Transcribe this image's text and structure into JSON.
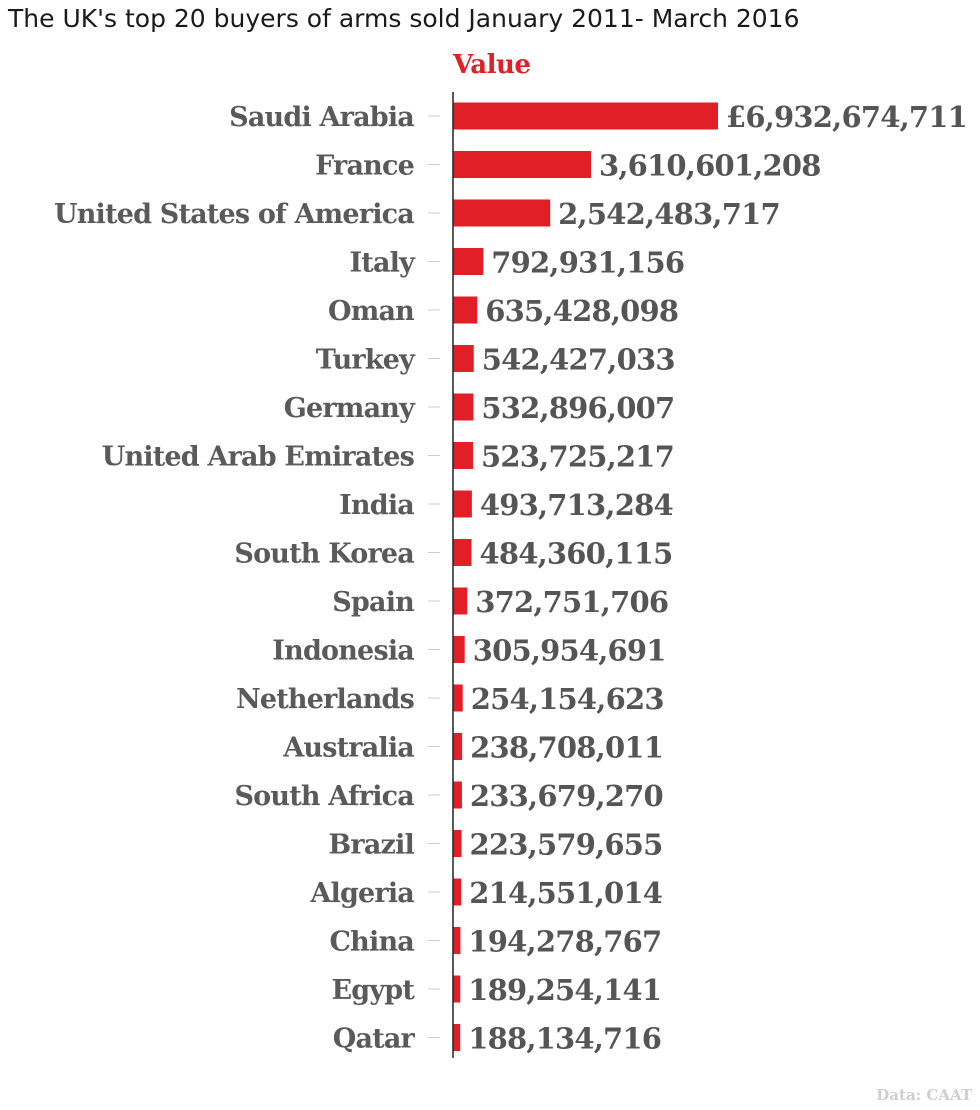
{
  "title": "The UK's top 20 buyers of arms sold January 2011- March 2016",
  "source": "Data: CAAT",
  "colors": {
    "bar": "#e01f26",
    "header": "#e01f26",
    "label": "#5a5a5a",
    "axis": "#222222",
    "tick": "#cccccc"
  },
  "chart_data": {
    "type": "bar",
    "orientation": "horizontal",
    "title": "The UK's top 20 buyers of arms sold January 2011- March 2016",
    "series": [
      {
        "name": "Value"
      }
    ],
    "categories": [
      "Saudi Arabia",
      "France",
      "United States of America",
      "Italy",
      "Oman",
      "Turkey",
      "Germany",
      "United Arab Emirates",
      "India",
      "South Korea",
      "Spain",
      "Indonesia",
      "Netherlands",
      "Australia",
      "South Africa",
      "Brazil",
      "Algeria",
      "China",
      "Egypt",
      "Qatar"
    ],
    "values": [
      6932674711,
      3610601208,
      2542483717,
      792931156,
      635428098,
      542427033,
      532896007,
      523725217,
      493713284,
      484360115,
      372751706,
      305954691,
      254154623,
      238708011,
      233679270,
      223579655,
      214551014,
      194278767,
      189254141,
      188134716
    ],
    "value_labels": [
      "£6,932,674,711",
      "3,610,601,208",
      "2,542,483,717",
      "792,931,156",
      "635,428,098",
      "542,427,033",
      "532,896,007",
      "523,725,217",
      "493,713,284",
      "484,360,115",
      "372,751,706",
      "305,954,691",
      "254,154,623",
      "238,708,011",
      "233,679,270",
      "223,579,655",
      "214,551,014",
      "194,278,767",
      "189,254,141",
      "188,134,716"
    ],
    "grid": false,
    "legend": "none"
  }
}
